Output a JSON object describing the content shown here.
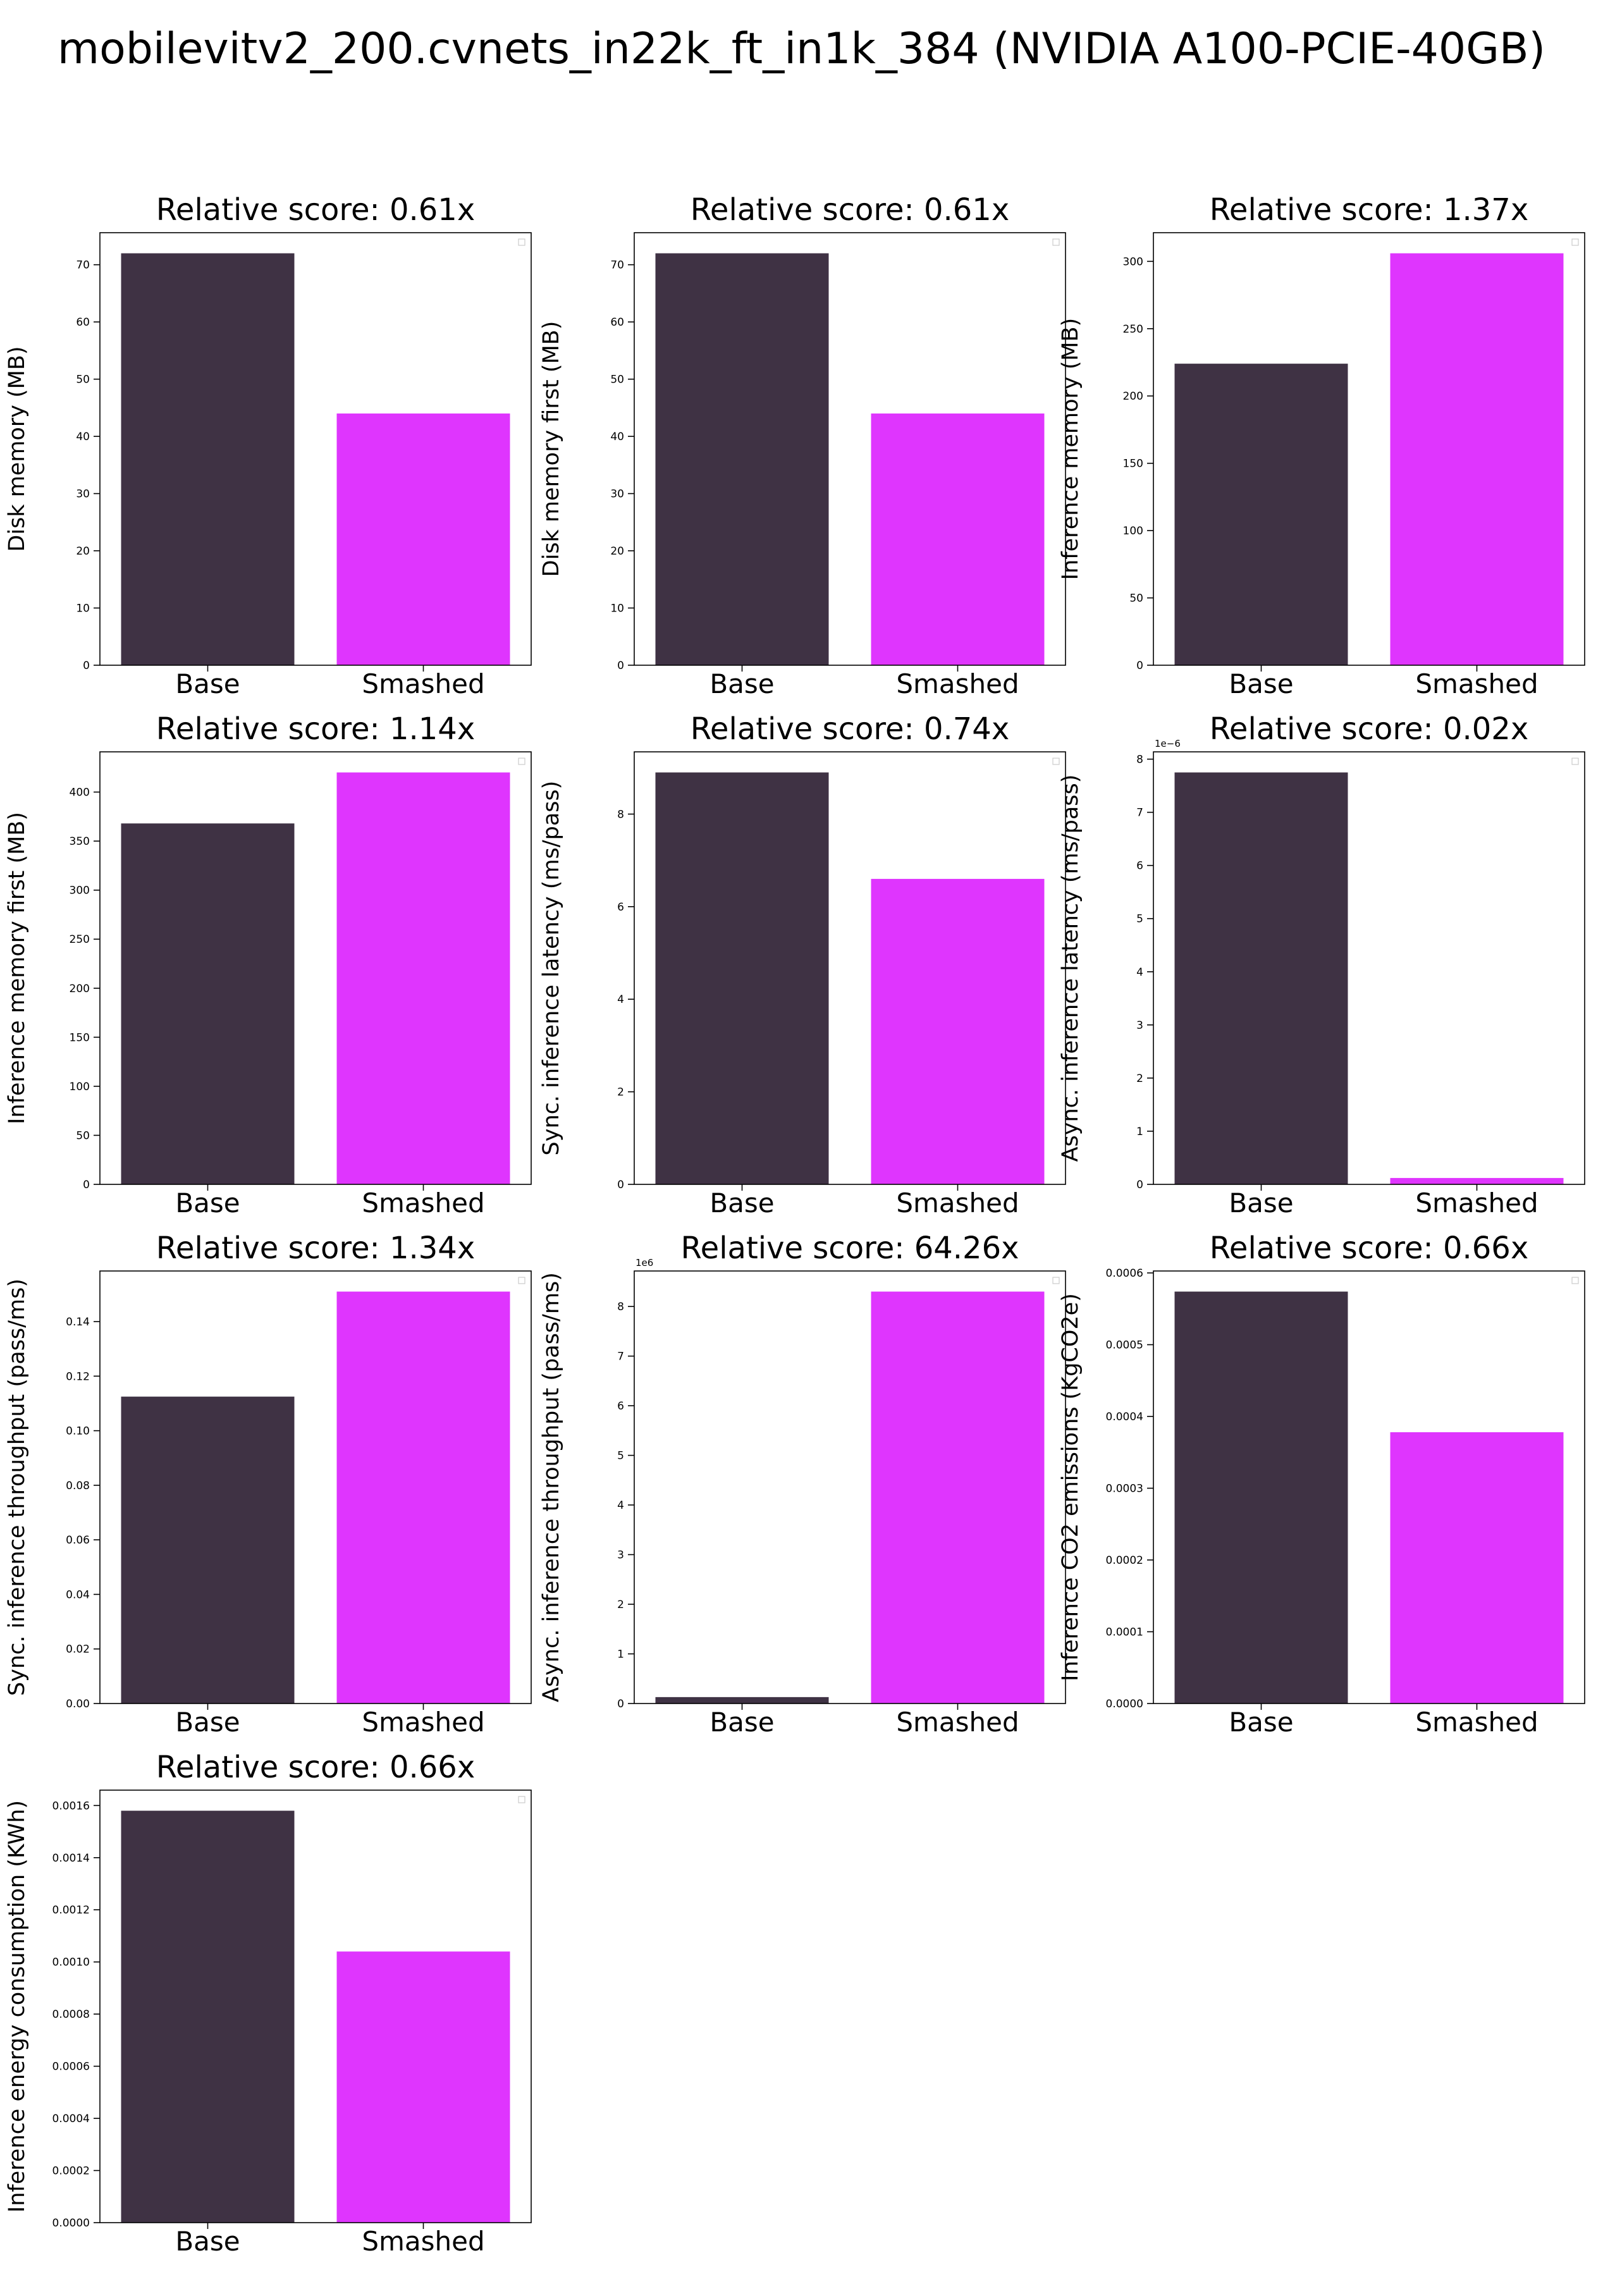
{
  "figure": {
    "title": "mobilevitv2_200.cvnets_in22k_ft_in1k_384 (NVIDIA A100-PCIE-40GB)"
  },
  "colors": {
    "base": "#3f3244",
    "smashed": "#df35fe"
  },
  "chart_data": [
    {
      "type": "bar",
      "title": "Relative score: 0.61x",
      "ylabel": "Disk memory (MB)",
      "categories": [
        "Base",
        "Smashed"
      ],
      "values": [
        72.0,
        44.0
      ],
      "ylim": [
        0,
        75.6
      ],
      "yticks": [
        0,
        10,
        20,
        30,
        40,
        50,
        60,
        70
      ],
      "ytick_labels": [
        "0",
        "10",
        "20",
        "30",
        "40",
        "50",
        "60",
        "70"
      ],
      "legend": "top-right (empty)"
    },
    {
      "type": "bar",
      "title": "Relative score: 0.61x",
      "ylabel": "Disk memory first (MB)",
      "categories": [
        "Base",
        "Smashed"
      ],
      "values": [
        72.0,
        44.0
      ],
      "ylim": [
        0,
        75.6
      ],
      "yticks": [
        0,
        10,
        20,
        30,
        40,
        50,
        60,
        70
      ],
      "ytick_labels": [
        "0",
        "10",
        "20",
        "30",
        "40",
        "50",
        "60",
        "70"
      ],
      "legend": "top-right (empty)"
    },
    {
      "type": "bar",
      "title": "Relative score: 1.37x",
      "ylabel": "Inference memory (MB)",
      "categories": [
        "Base",
        "Smashed"
      ],
      "values": [
        224.0,
        306.0
      ],
      "ylim": [
        0,
        321.3
      ],
      "yticks": [
        0,
        50,
        100,
        150,
        200,
        250,
        300
      ],
      "ytick_labels": [
        "0",
        "50",
        "100",
        "150",
        "200",
        "250",
        "300"
      ],
      "legend": "top-right (empty)"
    },
    {
      "type": "bar",
      "title": "Relative score: 1.14x",
      "ylabel": "Inference memory first (MB)",
      "categories": [
        "Base",
        "Smashed"
      ],
      "values": [
        368.0,
        420.0
      ],
      "ylim": [
        0,
        441
      ],
      "yticks": [
        0,
        50,
        100,
        150,
        200,
        250,
        300,
        350,
        400
      ],
      "ytick_labels": [
        "0",
        "50",
        "100",
        "150",
        "200",
        "250",
        "300",
        "350",
        "400"
      ],
      "legend": "top-right (empty)"
    },
    {
      "type": "bar",
      "title": "Relative score: 0.74x",
      "ylabel": "Sync. inference latency (ms/pass)",
      "categories": [
        "Base",
        "Smashed"
      ],
      "values": [
        8.9,
        6.6
      ],
      "ylim": [
        0,
        9.345
      ],
      "yticks": [
        0,
        2,
        4,
        6,
        8
      ],
      "ytick_labels": [
        "0",
        "2",
        "4",
        "6",
        "8"
      ],
      "legend": "top-right (empty)"
    },
    {
      "type": "bar",
      "title": "Relative score: 0.02x",
      "ylabel": "Async. inference latency (ms/pass)",
      "categories": [
        "Base",
        "Smashed"
      ],
      "values": [
        7.75e-06,
        1.2e-07
      ],
      "ylim": [
        0,
        8.1375e-06
      ],
      "yticks": [
        0,
        1e-06,
        2e-06,
        3e-06,
        4e-06,
        5e-06,
        6e-06,
        7e-06,
        8e-06
      ],
      "ytick_labels": [
        "0",
        "1",
        "2",
        "3",
        "4",
        "5",
        "6",
        "7",
        "8"
      ],
      "offset_label": "1e−6",
      "legend": "top-right (empty)"
    },
    {
      "type": "bar",
      "title": "Relative score: 1.34x",
      "ylabel": "Sync. inference throughput (pass/ms)",
      "categories": [
        "Base",
        "Smashed"
      ],
      "values": [
        0.1125,
        0.151
      ],
      "ylim": [
        0,
        0.15855
      ],
      "yticks": [
        0,
        0.02,
        0.04,
        0.06,
        0.08,
        0.1,
        0.12,
        0.14
      ],
      "ytick_labels": [
        "0.00",
        "0.02",
        "0.04",
        "0.06",
        "0.08",
        "0.10",
        "0.12",
        "0.14"
      ],
      "legend": "top-right (empty)"
    },
    {
      "type": "bar",
      "title": "Relative score: 64.26x",
      "ylabel": "Async. inference throughput (pass/ms)",
      "categories": [
        "Base",
        "Smashed"
      ],
      "values": [
        129000,
        8300000
      ],
      "ylim": [
        0,
        8715000
      ],
      "yticks": [
        0,
        1000000,
        2000000,
        3000000,
        4000000,
        5000000,
        6000000,
        7000000,
        8000000
      ],
      "ytick_labels": [
        "0",
        "1",
        "2",
        "3",
        "4",
        "5",
        "6",
        "7",
        "8"
      ],
      "offset_label": "1e6",
      "legend": "top-right (empty)"
    },
    {
      "type": "bar",
      "title": "Relative score: 0.66x",
      "ylabel": "Inference CO2 emissions (KgCO2e)",
      "categories": [
        "Base",
        "Smashed"
      ],
      "values": [
        0.000574,
        0.000378
      ],
      "ylim": [
        0,
        0.0006027
      ],
      "yticks": [
        0,
        0.0001,
        0.0002,
        0.0003,
        0.0004,
        0.0005,
        0.0006
      ],
      "ytick_labels": [
        "0.0000",
        "0.0001",
        "0.0002",
        "0.0003",
        "0.0004",
        "0.0005",
        "0.0006"
      ],
      "legend": "top-right (empty)"
    },
    {
      "type": "bar",
      "title": "Relative score: 0.66x",
      "ylabel": "Inference energy consumption (KWh)",
      "categories": [
        "Base",
        "Smashed"
      ],
      "values": [
        0.00158,
        0.00104
      ],
      "ylim": [
        0,
        0.001659
      ],
      "yticks": [
        0,
        0.0002,
        0.0004,
        0.0006,
        0.0008,
        0.001,
        0.0012,
        0.0014,
        0.0016
      ],
      "ytick_labels": [
        "0.0000",
        "0.0002",
        "0.0004",
        "0.0006",
        "0.0008",
        "0.0010",
        "0.0012",
        "0.0014",
        "0.0016"
      ],
      "legend": "top-right (empty)"
    }
  ]
}
